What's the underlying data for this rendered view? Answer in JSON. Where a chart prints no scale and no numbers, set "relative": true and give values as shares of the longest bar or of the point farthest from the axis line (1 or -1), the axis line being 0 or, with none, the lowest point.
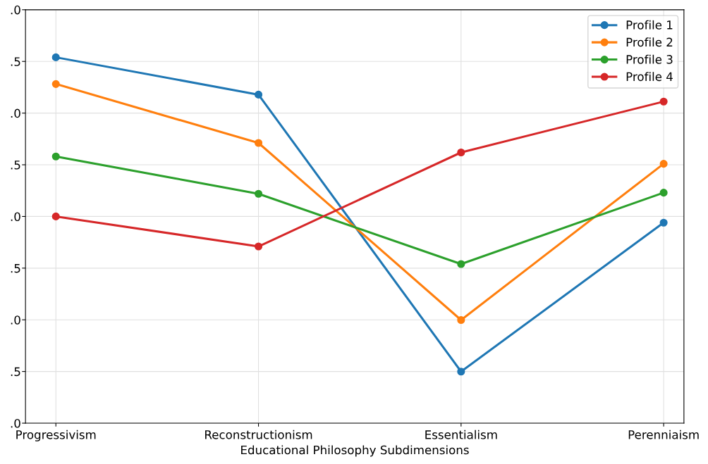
{
  "chart_data": {
    "type": "line",
    "xlabel": "Educational Philosophy Subdimensions",
    "categories": [
      "Progressivism",
      "Reconstructionism",
      "Essentialism",
      "Perenniaism"
    ],
    "relative": true,
    "series": [
      {
        "name": "Profile 1",
        "color": "#1f77b4",
        "values": [
          1.0,
          0.898,
          0.141,
          0.548
        ]
      },
      {
        "name": "Profile 2",
        "color": "#ff7f0e",
        "values": [
          0.927,
          0.766,
          0.282,
          0.709
        ]
      },
      {
        "name": "Profile 3",
        "color": "#2ca02c",
        "values": [
          0.729,
          0.627,
          0.435,
          0.63
        ]
      },
      {
        "name": "Profile 4",
        "color": "#d62728",
        "values": [
          0.565,
          0.483,
          0.74,
          0.879
        ]
      }
    ],
    "annotations": [
      ".0",
      ".5",
      ".0",
      ".5",
      ".0",
      ".5",
      ".0",
      ".5",
      ".0"
    ],
    "grid": true,
    "legend": "top right",
    "marker": "circle",
    "line_style": "solid"
  }
}
